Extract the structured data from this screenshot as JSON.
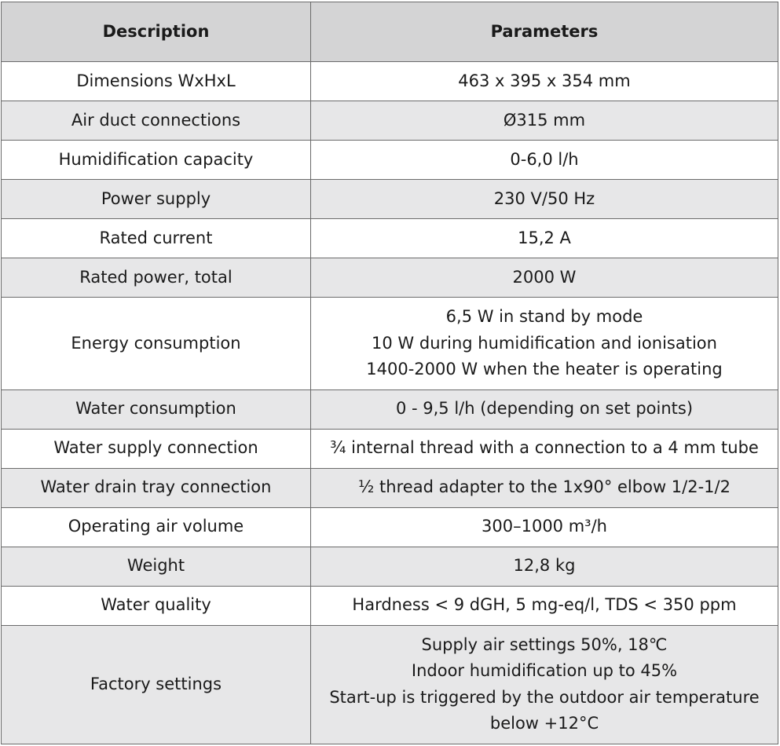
{
  "table": {
    "header": [
      "Description",
      "Parameters"
    ],
    "rows": [
      [
        "Dimensions WxHxL",
        [
          "463 x 395 x 354 mm"
        ]
      ],
      [
        "Air duct connections",
        [
          "Ø315 mm"
        ]
      ],
      [
        "Humidification capacity",
        [
          "0-6,0 l/h"
        ]
      ],
      [
        "Power supply",
        [
          "230 V/50 Hz"
        ]
      ],
      [
        "Rated current",
        [
          "15,2 A"
        ]
      ],
      [
        "Rated power, total",
        [
          "2000 W"
        ]
      ],
      [
        "Energy consumption",
        [
          "6,5 W in stand by mode",
          "10 W during humidification and ionisation",
          "1400-2000 W when the heater is operating"
        ]
      ],
      [
        "Water consumption",
        [
          "0 - 9,5 l/h (depending on set points)"
        ]
      ],
      [
        "Water supply connection",
        [
          "¾ internal thread with a connection to a 4 mm tube"
        ]
      ],
      [
        "Water drain tray connection",
        [
          "½ thread adapter to the 1x90° elbow 1/2-1/2"
        ]
      ],
      [
        "Operating air volume",
        [
          "300–1000 m³/h"
        ]
      ],
      [
        "Weight",
        [
          "12,8 kg"
        ]
      ],
      [
        "Water quality",
        [
          "Hardness < 9 dGH, 5 mg-eq/l, TDS < 350 ppm"
        ]
      ],
      [
        "Factory settings",
        [
          "Supply air settings 50%, 18℃",
          "Indoor humidification up to 45%",
          "Start-up is triggered by the outdoor air temperature",
          "below +12°C"
        ]
      ]
    ]
  }
}
